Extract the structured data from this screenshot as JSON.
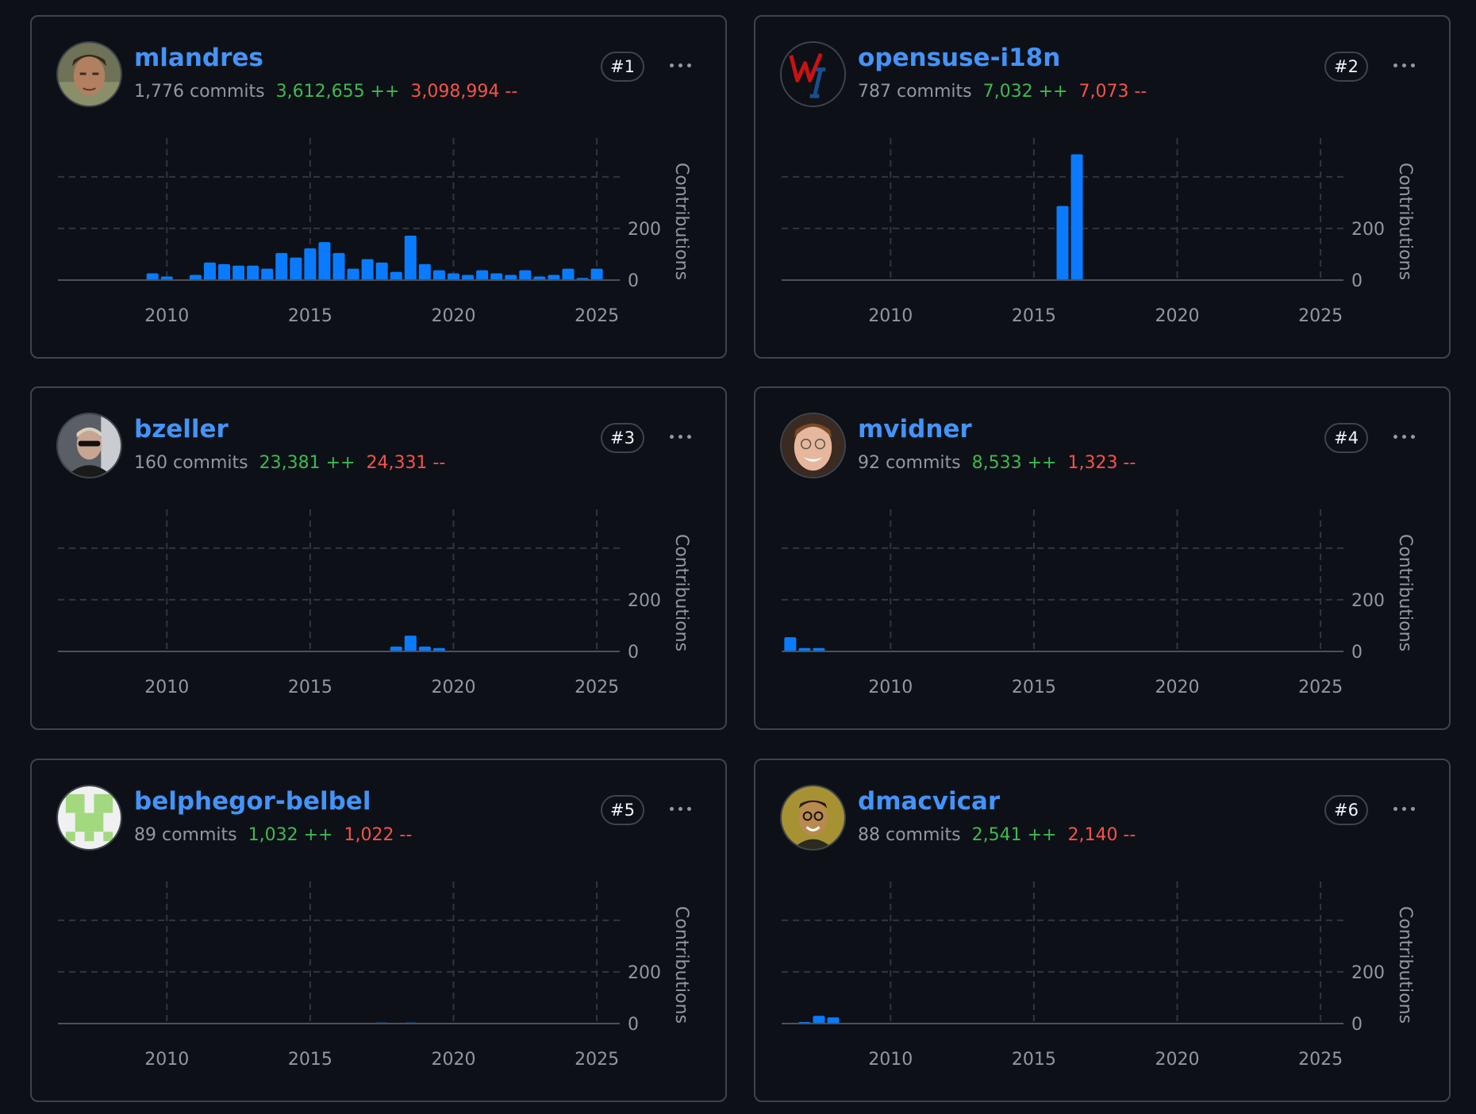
{
  "colors": {
    "background": "#0d1117",
    "border": "#3d444d",
    "name": "#4493f8",
    "additions": "#3fb950",
    "deletions": "#f85149",
    "muted": "#9198a1",
    "bar": "#0a7bff",
    "grid": "#30363d"
  },
  "contributors": [
    {
      "name": "mlandres",
      "rank": "#1",
      "commits": "1,776 commits",
      "additions": "3,612,655 ++",
      "deletions": "3,098,994 --",
      "avatar": "photo-avatar",
      "more_icon": "kebab-horizontal-icon"
    },
    {
      "name": "opensuse-i18n",
      "rank": "#2",
      "commits": "787 commits",
      "additions": "7,032 ++",
      "deletions": "7,073 --",
      "avatar": "wi-logo-avatar",
      "more_icon": "kebab-horizontal-icon"
    },
    {
      "name": "bzeller",
      "rank": "#3",
      "commits": "160 commits",
      "additions": "23,381 ++",
      "deletions": "24,331 --",
      "avatar": "photo-avatar",
      "more_icon": "kebab-horizontal-icon"
    },
    {
      "name": "mvidner",
      "rank": "#4",
      "commits": "92 commits",
      "additions": "8,533 ++",
      "deletions": "1,323 --",
      "avatar": "photo-avatar",
      "more_icon": "kebab-horizontal-icon"
    },
    {
      "name": "belphegor-belbel",
      "rank": "#5",
      "commits": "89 commits",
      "additions": "1,032 ++",
      "deletions": "1,022 --",
      "avatar": "identicon-avatar",
      "more_icon": "kebab-horizontal-icon"
    },
    {
      "name": "dmacvicar",
      "rank": "#6",
      "commits": "88 commits",
      "additions": "2,541 ++",
      "deletions": "2,140 --",
      "avatar": "photo-avatar",
      "more_icon": "kebab-horizontal-icon"
    }
  ],
  "chart_data": [
    {
      "type": "bar",
      "ylabel": "Contributions",
      "xlim": [
        2006.2,
        2025.8
      ],
      "ylim": [
        0,
        550
      ],
      "xticks": [
        "2010",
        "2015",
        "2020",
        "2025"
      ],
      "yticks": [
        "0",
        "200"
      ],
      "ygrid": [
        200,
        400
      ],
      "grid": true,
      "x": [
        2009.5,
        2010,
        2011,
        2011.5,
        2012,
        2012.5,
        2013,
        2013.5,
        2014,
        2014.5,
        2015,
        2015.5,
        2016,
        2016.5,
        2017,
        2017.5,
        2018,
        2018.5,
        2019,
        2019.5,
        2020,
        2020.5,
        2021,
        2021.5,
        2022,
        2022.5,
        2023,
        2023.5,
        2024,
        2024.5,
        2025
      ],
      "values": [
        26,
        14,
        20,
        68,
        62,
        56,
        56,
        44,
        105,
        87,
        123,
        147,
        105,
        44,
        81,
        68,
        32,
        172,
        62,
        38,
        26,
        20,
        38,
        26,
        20,
        38,
        14,
        20,
        44,
        8,
        44
      ]
    },
    {
      "type": "bar",
      "ylabel": "Contributions",
      "xlim": [
        2006.2,
        2025.8
      ],
      "ylim": [
        0,
        550
      ],
      "xticks": [
        "2010",
        "2015",
        "2020",
        "2025"
      ],
      "yticks": [
        "0",
        "200"
      ],
      "ygrid": [
        200,
        400
      ],
      "grid": true,
      "x": [
        2016,
        2016.5
      ],
      "values": [
        287,
        487
      ]
    },
    {
      "type": "bar",
      "ylabel": "Contributions",
      "xlim": [
        2006.2,
        2025.8
      ],
      "ylim": [
        0,
        550
      ],
      "xticks": [
        "2010",
        "2015",
        "2020",
        "2025"
      ],
      "yticks": [
        "0",
        "200"
      ],
      "ygrid": [
        200,
        400
      ],
      "grid": true,
      "x": [
        2018,
        2018.5,
        2019,
        2019.5
      ],
      "values": [
        19,
        61,
        19,
        13
      ]
    },
    {
      "type": "bar",
      "ylabel": "Contributions",
      "xlim": [
        2006.2,
        2025.8
      ],
      "ylim": [
        0,
        550
      ],
      "xticks": [
        "2010",
        "2015",
        "2020",
        "2025"
      ],
      "yticks": [
        "0",
        "200"
      ],
      "ygrid": [
        200,
        400
      ],
      "grid": true,
      "x": [
        2006.5,
        2007,
        2007.5
      ],
      "values": [
        55,
        13,
        13
      ]
    },
    {
      "type": "bar",
      "ylabel": "Contributions",
      "xlim": [
        2006.2,
        2025.8
      ],
      "ylim": [
        0,
        550
      ],
      "xticks": [
        "2010",
        "2015",
        "2020",
        "2025"
      ],
      "yticks": [
        "0",
        "200"
      ],
      "ygrid": [
        200,
        400
      ],
      "grid": true,
      "x": [
        2017.5,
        2018.5,
        2025
      ],
      "values": [
        4,
        4,
        3
      ]
    },
    {
      "type": "bar",
      "ylabel": "Contributions",
      "xlim": [
        2006.2,
        2025.8
      ],
      "ylim": [
        0,
        550
      ],
      "xticks": [
        "2010",
        "2015",
        "2020",
        "2025"
      ],
      "yticks": [
        "0",
        "200"
      ],
      "ygrid": [
        200,
        400
      ],
      "grid": true,
      "x": [
        2007,
        2007.5,
        2008
      ],
      "values": [
        6,
        30,
        24
      ]
    }
  ]
}
